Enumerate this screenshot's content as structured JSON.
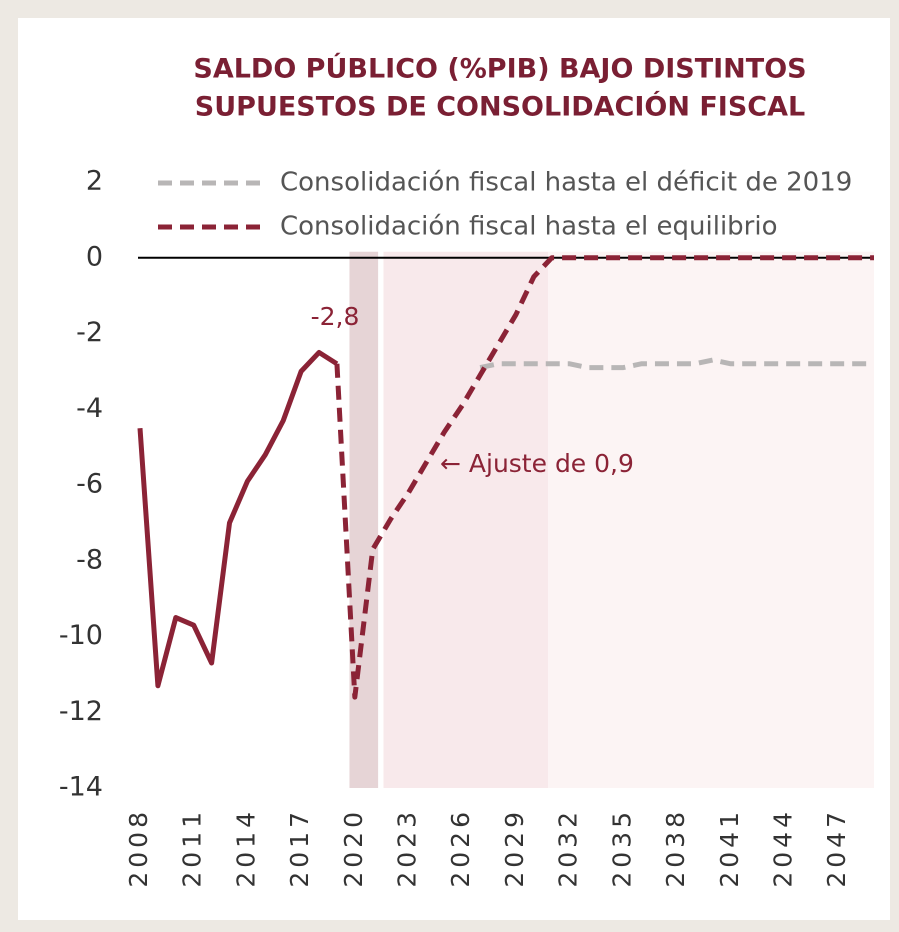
{
  "chart_data": {
    "type": "line",
    "title": [
      "SALDO PÚBLICO (%PIB) BAJO DISTINTOS",
      "SUPUESTOS DE CONSOLIDACIÓN FISCAL"
    ],
    "x": [
      2008,
      2009,
      2010,
      2011,
      2012,
      2013,
      2014,
      2015,
      2016,
      2017,
      2018,
      2019,
      2020,
      2021,
      2022,
      2023,
      2024,
      2025,
      2026,
      2027,
      2028,
      2029,
      2030,
      2031,
      2032,
      2033,
      2034,
      2035,
      2036,
      2037,
      2038,
      2039,
      2040,
      2041,
      2042,
      2043,
      2044,
      2045,
      2046,
      2047,
      2048,
      2049
    ],
    "series": [
      {
        "name": "Consolidación fiscal hasta el déficit de 2019",
        "color": "#b8b6b6",
        "dashed": true,
        "values": [
          null,
          null,
          null,
          null,
          null,
          null,
          null,
          null,
          null,
          null,
          null,
          null,
          null,
          null,
          null,
          null,
          null,
          null,
          null,
          -2.9,
          -2.8,
          -2.8,
          -2.8,
          -2.8,
          -2.8,
          -2.9,
          -2.9,
          -2.9,
          -2.8,
          -2.8,
          -2.8,
          -2.8,
          -2.7,
          -2.8,
          -2.8,
          -2.8,
          -2.8,
          -2.8,
          -2.8,
          -2.8,
          -2.8,
          -2.8
        ]
      },
      {
        "name": "Consolidación fiscal hasta el equilibrio",
        "color": "#8b2336",
        "dashed": true,
        "values": [
          null,
          null,
          null,
          null,
          null,
          null,
          null,
          null,
          null,
          null,
          null,
          -2.8,
          -11.6,
          -7.7,
          -6.9,
          -6.2,
          -5.4,
          -4.6,
          -3.9,
          -3.1,
          -2.3,
          -1.5,
          -0.5,
          0,
          0,
          0,
          0,
          0,
          0,
          0,
          0,
          0,
          0,
          0,
          0,
          0,
          0,
          0,
          0,
          0,
          0,
          0
        ]
      },
      {
        "color": "#8b2336",
        "dashed": false,
        "values": [
          -4.5,
          -11.3,
          -9.5,
          -9.7,
          -10.7,
          -7.0,
          -5.9,
          -5.2,
          -4.3,
          -3.0,
          -2.5,
          -2.8,
          null,
          null,
          null,
          null,
          null,
          null,
          null,
          null,
          null,
          null,
          null,
          null,
          null,
          null,
          null,
          null,
          null,
          null,
          null,
          null,
          null,
          null,
          null,
          null,
          null,
          null,
          null,
          null,
          null,
          null
        ]
      }
    ],
    "bands": [
      {
        "from": 2019.7,
        "to": 2021.3,
        "color": "#e6d4d6"
      },
      {
        "from": 2021.6,
        "to": 2030.8,
        "color": "#f8e9eb"
      },
      {
        "from": 2030.8,
        "to": 2049,
        "color": "#fcf4f4"
      }
    ],
    "annotations": [
      "-2,8",
      "← Ajuste de 0,9"
    ],
    "xlim": [
      2008,
      2049
    ],
    "xticks": [
      2008,
      2011,
      2014,
      2017,
      2020,
      2023,
      2026,
      2029,
      2032,
      2035,
      2038,
      2041,
      2044,
      2047
    ],
    "ylim": [
      -14,
      2
    ],
    "yticks": [
      2,
      0,
      -2,
      -4,
      -6,
      -8,
      -10,
      -12,
      -14
    ],
    "legend": "top-left"
  }
}
